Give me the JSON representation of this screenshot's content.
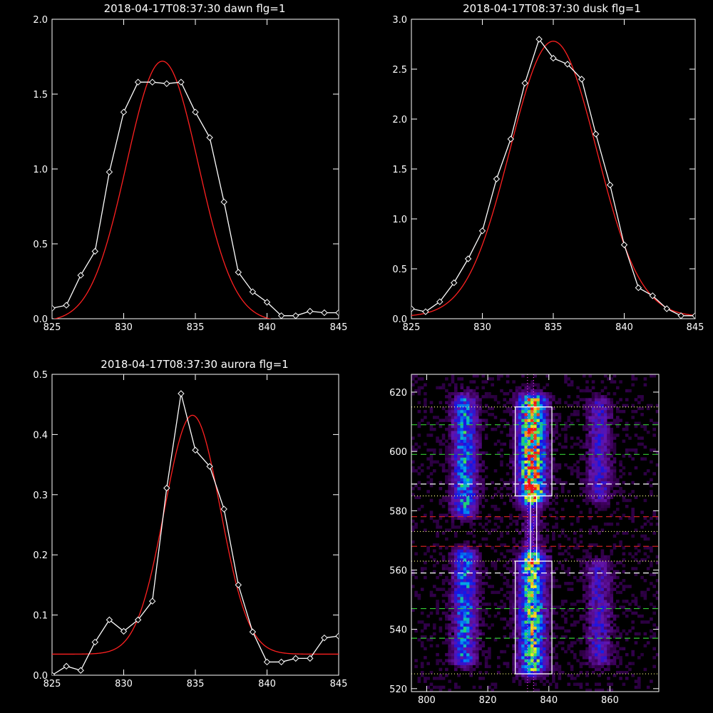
{
  "colors": {
    "background": "#000000",
    "axes": "#ffffff",
    "data_line": "#ffffff",
    "fit_line": "#ff2020",
    "green_dash": "#33cc33",
    "white_dash": "#ffffff",
    "red_dash": "#cc2020",
    "dotted": "#ffff80",
    "magenta_dotted": "#ff40ff"
  },
  "chart_data": [
    {
      "type": "line",
      "title": "2018-04-17T08:37:30 dawn flg=1",
      "xlim": [
        825,
        845
      ],
      "ylim": [
        0,
        2.0
      ],
      "xticks": [
        "825",
        "830",
        "835",
        "840",
        "845"
      ],
      "xtick_values": [
        825,
        830,
        835,
        840,
        845
      ],
      "yticks": [
        "0.0",
        "0.5",
        "1.0",
        "1.5",
        "2.0"
      ],
      "ytick_values": [
        0,
        0.5,
        1.0,
        1.5,
        2.0
      ],
      "series": [
        {
          "role": "data",
          "marker": "diamond",
          "x": [
            825,
            826,
            827,
            828,
            829,
            830,
            831,
            832,
            833,
            834,
            835,
            836,
            837,
            838,
            839,
            840,
            841,
            842,
            843,
            844,
            845
          ],
          "y": [
            0.07,
            0.09,
            0.29,
            0.45,
            0.98,
            1.38,
            1.58,
            1.58,
            1.57,
            1.58,
            1.38,
            1.21,
            0.78,
            0.31,
            0.18,
            0.11,
            0.02,
            0.02,
            0.05,
            0.04,
            0.04
          ]
        },
        {
          "role": "fit",
          "curve": "gaussian",
          "amplitude": 1.74,
          "center": 832.7,
          "sigma": 2.5,
          "offset": -0.02
        }
      ]
    },
    {
      "type": "line",
      "title": "2018-04-17T08:37:30 dusk flg=1",
      "xlim": [
        825,
        845
      ],
      "ylim": [
        0,
        3.0
      ],
      "xticks": [
        "825",
        "830",
        "835",
        "840",
        "845"
      ],
      "xtick_values": [
        825,
        830,
        835,
        840,
        845
      ],
      "yticks": [
        "0.0",
        "0.5",
        "1.0",
        "1.5",
        "2.0",
        "2.5",
        "3.0"
      ],
      "ytick_values": [
        0,
        0.5,
        1.0,
        1.5,
        2.0,
        2.5,
        3.0
      ],
      "series": [
        {
          "role": "data",
          "marker": "diamond",
          "x": [
            825,
            826,
            827,
            828,
            829,
            830,
            831,
            832,
            833,
            834,
            835,
            836,
            837,
            838,
            839,
            840,
            841,
            842,
            843,
            844,
            845
          ],
          "y": [
            0.1,
            0.07,
            0.17,
            0.36,
            0.6,
            0.88,
            1.4,
            1.8,
            2.36,
            2.8,
            2.61,
            2.55,
            2.4,
            1.85,
            1.34,
            0.74,
            0.31,
            0.23,
            0.1,
            0.03,
            0.03
          ]
        },
        {
          "role": "fit",
          "curve": "gaussian",
          "amplitude": 2.76,
          "center": 835.0,
          "sigma": 3.05,
          "offset": 0.02
        }
      ]
    },
    {
      "type": "line",
      "title": "2018-04-17T08:37:30 aurora flg=1",
      "xlim": [
        825,
        845
      ],
      "ylim": [
        0,
        0.5
      ],
      "xticks": [
        "825",
        "830",
        "835",
        "840",
        "845"
      ],
      "xtick_values": [
        825,
        830,
        835,
        840,
        845
      ],
      "yticks": [
        "0.0",
        "0.1",
        "0.2",
        "0.3",
        "0.4",
        "0.5"
      ],
      "ytick_values": [
        0,
        0.1,
        0.2,
        0.3,
        0.4,
        0.5
      ],
      "series": [
        {
          "role": "data",
          "marker": "diamond",
          "x": [
            825,
            826,
            827,
            828,
            829,
            830,
            831,
            832,
            833,
            834,
            835,
            836,
            837,
            838,
            839,
            840,
            841,
            842,
            843,
            844,
            845
          ],
          "y": [
            0.0,
            0.015,
            0.008,
            0.055,
            0.092,
            0.073,
            0.092,
            0.123,
            0.311,
            0.468,
            0.374,
            0.347,
            0.276,
            0.15,
            0.072,
            0.022,
            0.022,
            0.028,
            0.028,
            0.062,
            0.065
          ]
        },
        {
          "role": "fit",
          "curve": "gaussian",
          "amplitude": 0.397,
          "center": 834.8,
          "sigma": 1.95,
          "offset": 0.035
        }
      ]
    },
    {
      "type": "heatmap",
      "title": "",
      "xlim": [
        795,
        876
      ],
      "ylim": [
        519,
        626
      ],
      "xticks": [
        "800",
        "820",
        "840",
        "860"
      ],
      "xtick_values": [
        800,
        820,
        840,
        860
      ],
      "yticks": [
        "520",
        "540",
        "560",
        "580",
        "600",
        "620"
      ],
      "ytick_values": [
        520,
        540,
        560,
        580,
        600,
        620
      ],
      "colormap": "rainbow",
      "bands": [
        {
          "x_center": 812,
          "x_width": 8,
          "y_range": [
            580,
            616
          ],
          "intensity": 0.55
        },
        {
          "x_center": 812,
          "x_width": 8,
          "y_range": [
            530,
            564
          ],
          "intensity": 0.5
        },
        {
          "x_center": 834,
          "x_width": 9,
          "y_range": [
            585,
            616
          ],
          "intensity": 1.0
        },
        {
          "x_center": 834,
          "x_width": 9,
          "y_range": [
            527,
            563
          ],
          "intensity": 0.75
        },
        {
          "x_center": 834,
          "x_width": 6,
          "y_range": [
            563,
            585
          ],
          "intensity": 0.25
        },
        {
          "x_center": 856,
          "x_width": 8,
          "y_range": [
            585,
            615
          ],
          "intensity": 0.3
        },
        {
          "x_center": 856,
          "x_width": 8,
          "y_range": [
            530,
            560
          ],
          "intensity": 0.3
        }
      ],
      "boxes": [
        {
          "x_range": [
            829,
            841
          ],
          "y_range": [
            585,
            615
          ]
        },
        {
          "x_range": [
            829,
            841
          ],
          "y_range": [
            525,
            563
          ]
        },
        {
          "x_range": [
            834,
            836
          ],
          "y_range": [
            563,
            585
          ]
        }
      ],
      "hlines": [
        {
          "y": 615,
          "style": "dotted",
          "color": "dotted"
        },
        {
          "y": 609,
          "style": "dashed",
          "color": "green_dash"
        },
        {
          "y": 599,
          "style": "dashed",
          "color": "green_dash"
        },
        {
          "y": 589,
          "style": "dashed",
          "color": "white_dash"
        },
        {
          "y": 585,
          "style": "dotted",
          "color": "dotted"
        },
        {
          "y": 578,
          "style": "dashed",
          "color": "red_dash"
        },
        {
          "y": 573,
          "style": "dotted",
          "color": "dotted"
        },
        {
          "y": 568,
          "style": "dashed",
          "color": "red_dash"
        },
        {
          "y": 563,
          "style": "dotted",
          "color": "dotted"
        },
        {
          "y": 559,
          "style": "dashed",
          "color": "white_dash"
        },
        {
          "y": 547,
          "style": "dashed",
          "color": "green_dash"
        },
        {
          "y": 537,
          "style": "dashed",
          "color": "green_dash"
        },
        {
          "y": 525,
          "style": "dotted",
          "color": "dotted"
        }
      ],
      "vlines": [
        {
          "x": 833,
          "style": "dotted",
          "color": "magenta_dotted"
        },
        {
          "x": 835,
          "style": "dotted",
          "color": "magenta_dotted"
        }
      ]
    }
  ]
}
